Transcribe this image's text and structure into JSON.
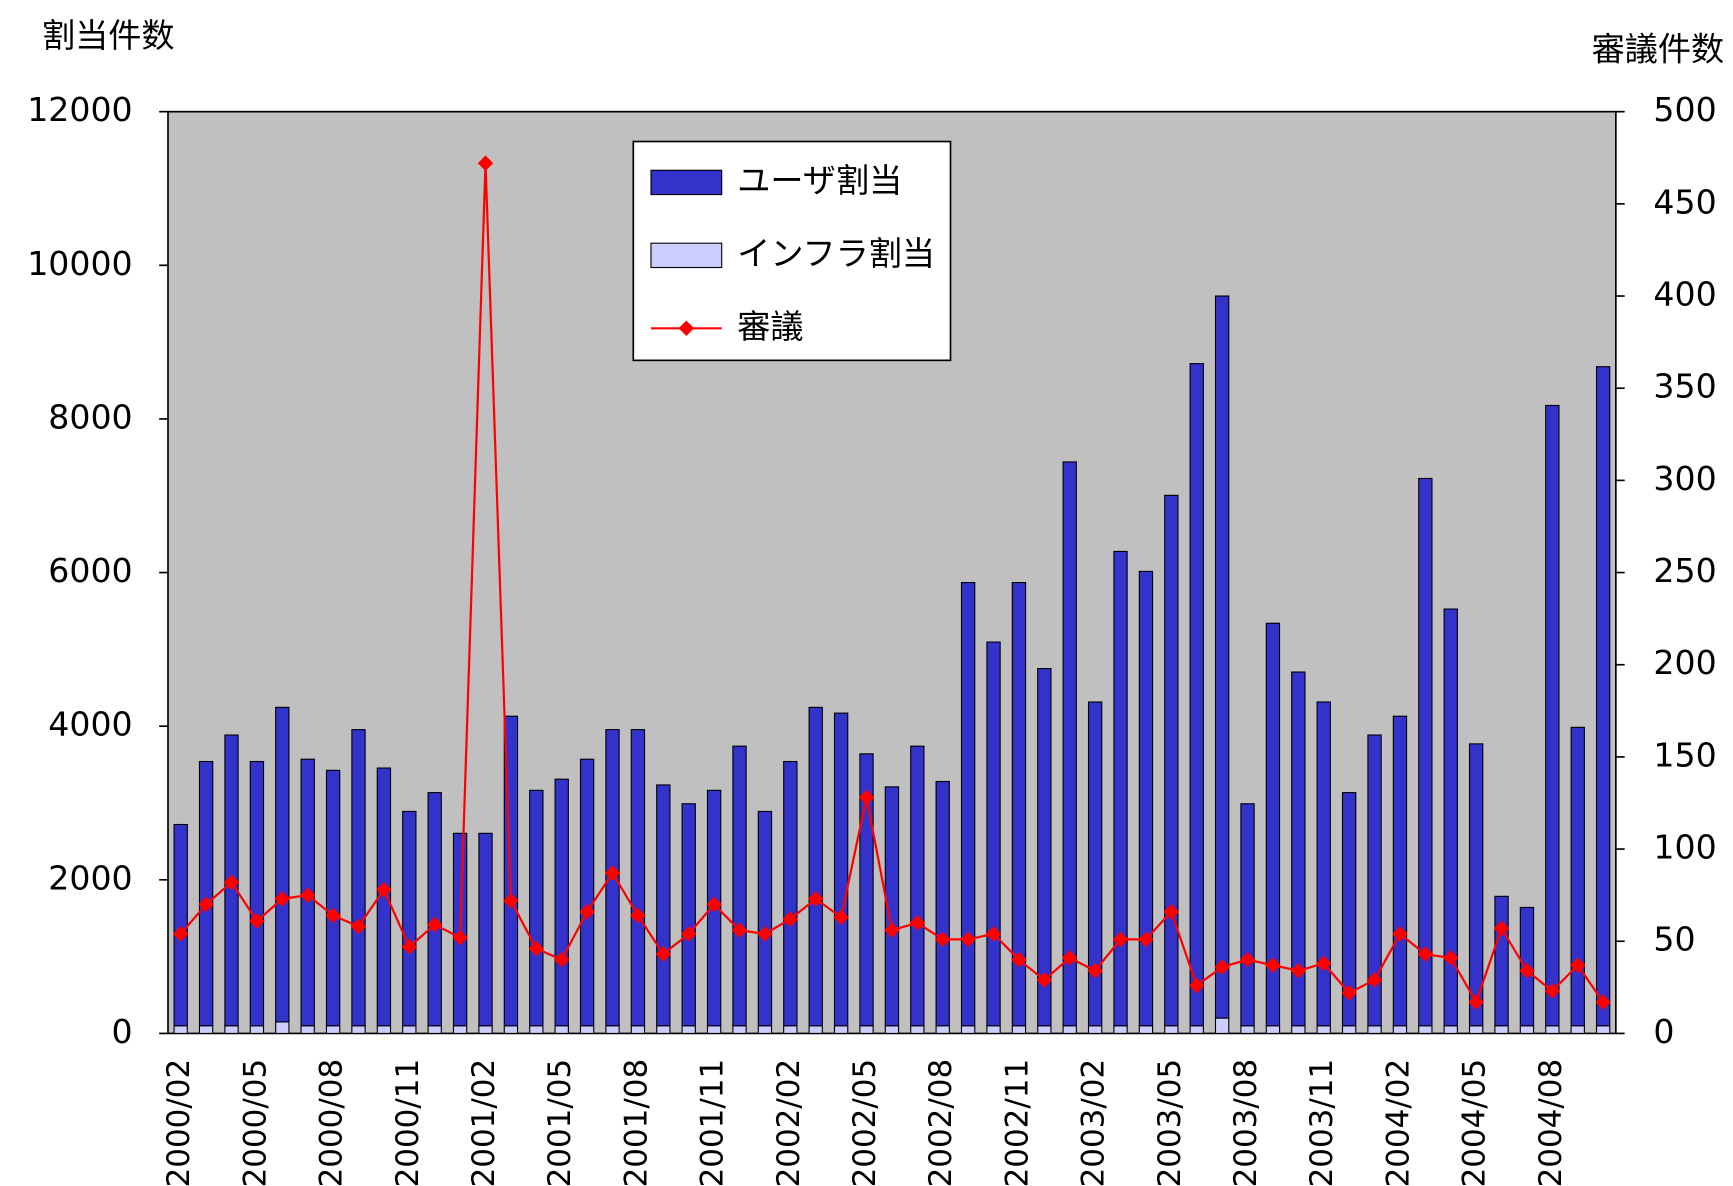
{
  "chart_data": {
    "type": "bar",
    "y_title": "割当件数",
    "y2_title": "審議件数",
    "categories": [
      "2000/02",
      null,
      null,
      "2000/05",
      null,
      null,
      "2000/08",
      null,
      null,
      "2000/11",
      null,
      null,
      "2001/02",
      null,
      null,
      "2001/05",
      null,
      null,
      "2001/08",
      null,
      null,
      "2001/11",
      null,
      null,
      "2002/02",
      null,
      null,
      "2002/05",
      null,
      null,
      "2002/08",
      null,
      null,
      "2002/11",
      null,
      null,
      "2003/02",
      null,
      null,
      "2003/05",
      null,
      null,
      "2003/08",
      null,
      null,
      "2003/11",
      null,
      null,
      "2004/02",
      null,
      null,
      "2004/05",
      null,
      null,
      "2004/08",
      null,
      null
    ],
    "series": [
      {
        "name": "ユーザ割当",
        "type": "bar",
        "color": "#3333cc",
        "values": [
          2620,
          3440,
          3785,
          3440,
          4095,
          3470,
          3325,
          3855,
          3355,
          2790,
          3035,
          2505,
          2505,
          4030,
          3065,
          3210,
          3470,
          3855,
          3855,
          3135,
          2890,
          3065,
          3640,
          2790,
          3440,
          4145,
          4070,
          3540,
          3110,
          3640,
          3180,
          5770,
          4995,
          5770,
          4650,
          7340,
          4215,
          6175,
          5915,
          6905,
          8620,
          9400,
          2890,
          5240,
          4605,
          4215,
          3035,
          3785,
          4030,
          7125,
          5425,
          3670,
          1685,
          1540,
          8075,
          3885,
          8580
        ]
      },
      {
        "name": "インフラ割当",
        "type": "bar",
        "color": "#ccccff",
        "values": [
          100,
          100,
          100,
          100,
          150,
          100,
          100,
          100,
          100,
          100,
          100,
          100,
          100,
          100,
          100,
          100,
          100,
          100,
          100,
          100,
          100,
          100,
          100,
          100,
          100,
          100,
          100,
          100,
          100,
          100,
          100,
          100,
          100,
          100,
          100,
          100,
          100,
          100,
          100,
          100,
          100,
          200,
          100,
          100,
          100,
          100,
          100,
          100,
          100,
          100,
          100,
          100,
          100,
          100,
          100,
          100,
          100
        ]
      },
      {
        "name": "審議",
        "type": "line",
        "axis": "y2",
        "color": "#ff0000",
        "values": [
          54,
          70,
          82,
          61,
          73,
          75,
          64,
          58,
          78,
          47,
          59,
          52,
          472,
          72,
          46,
          40,
          66,
          87,
          64,
          43,
          54,
          70,
          56,
          54,
          62,
          73,
          63,
          128,
          56,
          60,
          51,
          51,
          54,
          40,
          29,
          41,
          34,
          51,
          51,
          66,
          26,
          36,
          40,
          37,
          34,
          38,
          22,
          29,
          54,
          43,
          41,
          17,
          57,
          34,
          23,
          37,
          17
        ]
      }
    ],
    "ylim": [
      0,
      12000
    ],
    "yticks": [
      0,
      2000,
      4000,
      6000,
      8000,
      10000,
      12000
    ],
    "y2lim": [
      0,
      500
    ],
    "y2ticks": [
      0,
      50,
      100,
      150,
      200,
      250,
      300,
      350,
      400,
      450,
      500
    ],
    "background": "#c0c0c0",
    "legend": "top"
  }
}
